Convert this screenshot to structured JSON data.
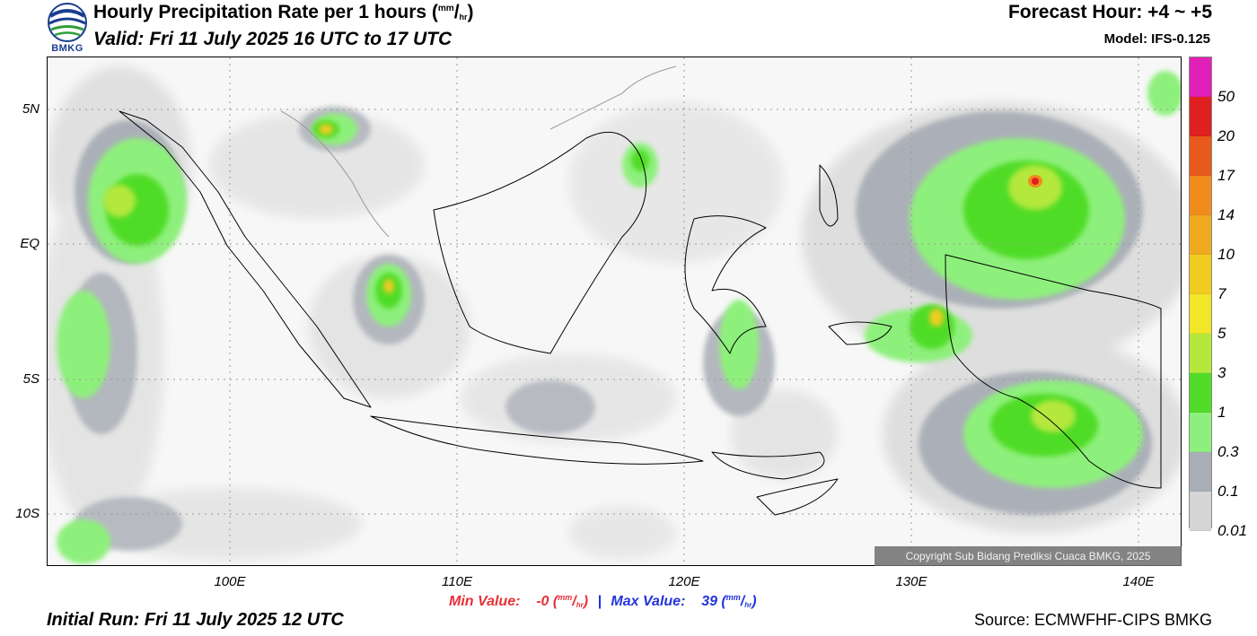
{
  "header": {
    "logo_text": "BMKG",
    "title_main": "Hourly Precipitation Rate per 1 hours (",
    "title_unit_num": "mm",
    "title_unit_slash": "/",
    "title_unit_den": "hr",
    "title_close": ")",
    "valid": "Valid: Fri 11 July 2025 16 UTC to 17 UTC",
    "forecast_hour": "Forecast Hour: +4 ~ +5",
    "model": "Model: IFS-0.125"
  },
  "map": {
    "lat_labels": [
      "5N",
      "EQ",
      "5S",
      "10S"
    ],
    "lon_labels": [
      "100E",
      "110E",
      "120E",
      "130E",
      "140E"
    ],
    "copyright": "Copyright Sub Bidang Prediksi Cuaca BMKG, 2025"
  },
  "legend": {
    "colors": [
      "#e020b8",
      "#e02020",
      "#e85a1c",
      "#f08c1e",
      "#f0aa20",
      "#f0cc20",
      "#f2e628",
      "#b4e83c",
      "#50dc28",
      "#8ef07c",
      "#a9aeb6",
      "#d5d5d5"
    ],
    "labels": [
      "50",
      "20",
      "17",
      "14",
      "10",
      "7",
      "5",
      "3",
      "1",
      "0.3",
      "0.1",
      "0.01"
    ]
  },
  "stats": {
    "min_label": "Min Value:",
    "min_value": "-0",
    "max_label": "Max Value:",
    "max_value": "39",
    "unit_num": "mm",
    "unit_slash": "/",
    "unit_den": "hr",
    "separator": "|"
  },
  "footer": {
    "initial_run": "Initial Run: Fri 11 July 2025 12 UTC",
    "source": "Source: ECMWFHF-CIPS BMKG"
  }
}
